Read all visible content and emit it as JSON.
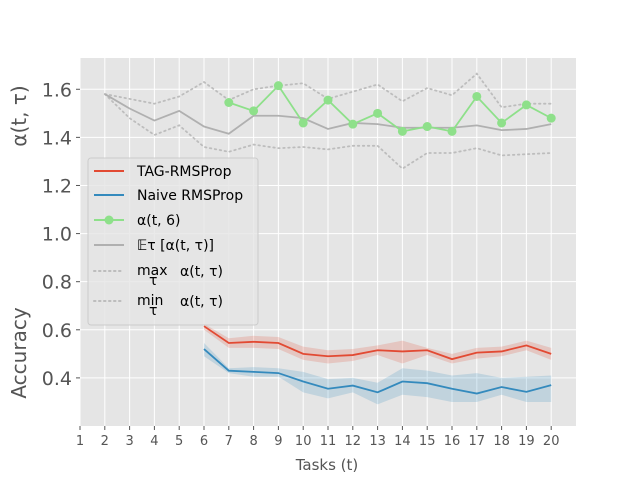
{
  "chart_data": {
    "type": "line",
    "xlabel": "Tasks (t)",
    "x_ticks": [
      1,
      2,
      3,
      4,
      5,
      6,
      7,
      8,
      9,
      10,
      11,
      12,
      13,
      14,
      15,
      16,
      17,
      18,
      19,
      20
    ],
    "xlim": [
      1,
      21
    ],
    "ylim": [
      0.2,
      1.73
    ],
    "y_ticks": [
      0.4,
      0.6,
      0.8,
      1.0,
      1.2,
      1.4,
      1.6
    ],
    "y_tick_labels": [
      "0.4",
      "0.6",
      "0.8",
      "1.0",
      "1.2",
      "1.4",
      "1.6"
    ],
    "ylabel_upper": "α(t, τ)",
    "ylabel_lower": "Accuracy",
    "grid": true,
    "legend_position": "center-left",
    "series": [
      {
        "name": "TAG-RMSProp",
        "color": "#E24A33",
        "style": "solid",
        "x": [
          6,
          7,
          8,
          9,
          10,
          11,
          12,
          13,
          14,
          15,
          16,
          17,
          18,
          19,
          20
        ],
        "values": [
          0.615,
          0.545,
          0.55,
          0.545,
          0.5,
          0.49,
          0.495,
          0.515,
          0.51,
          0.515,
          0.478,
          0.505,
          0.51,
          0.535,
          0.5
        ],
        "band_lower": [
          0.6,
          0.525,
          0.525,
          0.52,
          0.475,
          0.46,
          0.47,
          0.495,
          0.46,
          0.495,
          0.46,
          0.48,
          0.49,
          0.515,
          0.475
        ],
        "band_upper": [
          0.625,
          0.565,
          0.575,
          0.57,
          0.53,
          0.515,
          0.52,
          0.535,
          0.555,
          0.525,
          0.5,
          0.525,
          0.53,
          0.555,
          0.525
        ]
      },
      {
        "name": "Naive RMSProp",
        "color": "#348ABD",
        "style": "solid",
        "x": [
          6,
          7,
          8,
          9,
          10,
          11,
          12,
          13,
          14,
          15,
          16,
          17,
          18,
          19,
          20
        ],
        "values": [
          0.52,
          0.43,
          0.425,
          0.42,
          0.385,
          0.355,
          0.368,
          0.34,
          0.385,
          0.378,
          0.355,
          0.335,
          0.362,
          0.342,
          0.37
        ],
        "band_lower": [
          0.49,
          0.42,
          0.405,
          0.405,
          0.34,
          0.315,
          0.34,
          0.29,
          0.33,
          0.32,
          0.3,
          0.3,
          0.33,
          0.3,
          0.3
        ],
        "band_upper": [
          0.545,
          0.44,
          0.445,
          0.44,
          0.425,
          0.395,
          0.4,
          0.38,
          0.44,
          0.43,
          0.41,
          0.42,
          0.4,
          0.405,
          0.41
        ]
      },
      {
        "name": "α(t, 6)",
        "color": "#8EE08A",
        "style": "marker",
        "x": [
          7,
          8,
          9,
          10,
          11,
          12,
          13,
          14,
          15,
          16,
          17,
          18,
          19,
          20
        ],
        "values": [
          1.545,
          1.51,
          1.615,
          1.46,
          1.555,
          1.455,
          1.5,
          1.425,
          1.445,
          1.425,
          1.57,
          1.46,
          1.535,
          1.48
        ]
      },
      {
        "name": "𝔼τ  [α(t, τ)]",
        "color": "#B0B0B0",
        "style": "solid",
        "x": [
          2,
          3,
          4,
          5,
          6,
          7,
          8,
          9,
          10,
          11,
          12,
          13,
          14,
          15,
          16,
          17,
          18,
          19,
          20
        ],
        "values": [
          1.58,
          1.52,
          1.47,
          1.51,
          1.445,
          1.415,
          1.49,
          1.49,
          1.48,
          1.435,
          1.46,
          1.455,
          1.44,
          1.44,
          1.44,
          1.45,
          1.43,
          1.435,
          1.455
        ]
      },
      {
        "name": "max α(t, τ)",
        "legend_op": "max",
        "legend_sub": "τ",
        "legend_rest": "α(t, τ)",
        "color": "#BDBDBD",
        "style": "dotted",
        "x": [
          2,
          3,
          4,
          5,
          6,
          7,
          8,
          9,
          10,
          11,
          12,
          13,
          14,
          15,
          16,
          17,
          18,
          19,
          20
        ],
        "values": [
          1.58,
          1.56,
          1.54,
          1.57,
          1.63,
          1.555,
          1.6,
          1.615,
          1.625,
          1.56,
          1.59,
          1.62,
          1.55,
          1.605,
          1.575,
          1.665,
          1.525,
          1.54,
          1.54
        ]
      },
      {
        "name": "min α(t, τ)",
        "legend_op": "min",
        "legend_sub": "τ",
        "legend_rest": "α(t, τ)",
        "color": "#BDBDBD",
        "style": "dotted",
        "x": [
          2,
          3,
          4,
          5,
          6,
          7,
          8,
          9,
          10,
          11,
          12,
          13,
          14,
          15,
          16,
          17,
          18,
          19,
          20
        ],
        "values": [
          1.58,
          1.48,
          1.41,
          1.45,
          1.36,
          1.34,
          1.37,
          1.355,
          1.36,
          1.35,
          1.365,
          1.365,
          1.27,
          1.335,
          1.335,
          1.355,
          1.325,
          1.33,
          1.335
        ]
      }
    ]
  }
}
